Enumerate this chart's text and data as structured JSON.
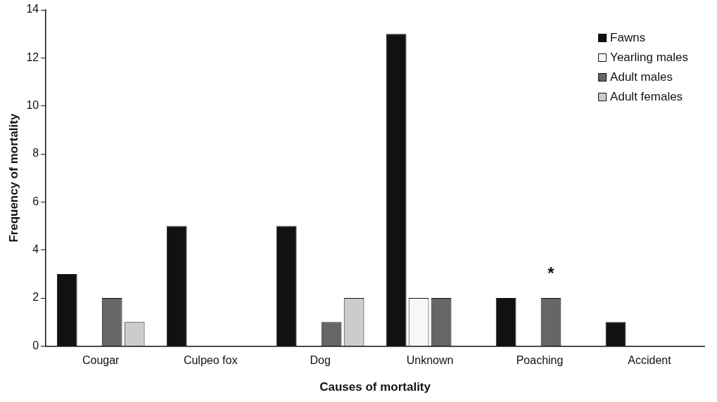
{
  "chart_data": {
    "type": "bar",
    "xlabel": "Causes of mortality",
    "ylabel": "Frequency of mortality",
    "categories": [
      "Cougar",
      "Culpeo fox",
      "Dog",
      "Unknown",
      "Poaching",
      "Accident"
    ],
    "series": [
      {
        "name": "Fawns",
        "color": "#111111",
        "values": [
          3,
          5,
          5,
          13,
          2,
          1
        ]
      },
      {
        "name": "Yearling males",
        "color": "#f8f8f8",
        "values": [
          0,
          0,
          0,
          2,
          0,
          0
        ]
      },
      {
        "name": "Adult males",
        "color": "#666666",
        "values": [
          2,
          0,
          1,
          2,
          2,
          0
        ]
      },
      {
        "name": "Adult females",
        "color": "#cccccc",
        "values": [
          1,
          0,
          2,
          0,
          0,
          0
        ]
      }
    ],
    "ylim": [
      0,
      14
    ],
    "yticks": [
      0,
      2,
      4,
      6,
      8,
      10,
      12,
      14
    ],
    "grid": false,
    "legend": "top right",
    "annotations": [
      {
        "text": "*",
        "x": "Poaching",
        "y": 2
      }
    ]
  }
}
